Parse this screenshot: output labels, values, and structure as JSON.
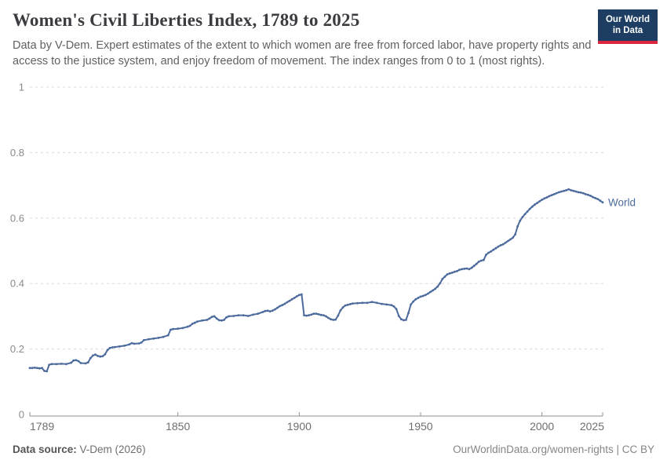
{
  "header": {
    "title": "Women's Civil Liberties Index, 1789 to 2025",
    "subtitle": "Data by V-Dem. Expert estimates of the extent to which women are free from forced labor, have property rights and access to the justice system, and enjoy freedom of movement. The index ranges from 0 to 1 (most rights).",
    "logo": {
      "line1": "Our World",
      "line2": "in Data",
      "bg_color": "#1d3d63",
      "stripe_color": "#dc2640"
    }
  },
  "chart_data": {
    "type": "line",
    "title": "Women's Civil Liberties Index, 1789 to 2025",
    "xlabel": "",
    "ylabel": "",
    "xlim": [
      1789,
      2025
    ],
    "ylim": [
      0,
      1
    ],
    "x_ticks": [
      1789,
      1850,
      1900,
      1950,
      2000,
      2025
    ],
    "y_ticks": [
      0,
      0.2,
      0.4,
      0.6,
      0.8,
      1
    ],
    "grid": "horizontal-dashed",
    "legend_position": "end-of-line-label",
    "axis_color": "#8f8f8f",
    "grid_color": "#d9d9d9",
    "tick_label_color": "#8a8a8a",
    "x_label_color": "#6e6e6e",
    "series": [
      {
        "name": "World",
        "color": "#4c6a9c",
        "points": [
          [
            1789,
            0.142
          ],
          [
            1790,
            0.142
          ],
          [
            1791,
            0.143
          ],
          [
            1792,
            0.142
          ],
          [
            1793,
            0.141
          ],
          [
            1794,
            0.142
          ],
          [
            1795,
            0.133
          ],
          [
            1796,
            0.132
          ],
          [
            1797,
            0.152
          ],
          [
            1798,
            0.154
          ],
          [
            1800,
            0.154
          ],
          [
            1802,
            0.155
          ],
          [
            1804,
            0.154
          ],
          [
            1806,
            0.158
          ],
          [
            1807,
            0.165
          ],
          [
            1808,
            0.166
          ],
          [
            1809,
            0.163
          ],
          [
            1810,
            0.157
          ],
          [
            1812,
            0.156
          ],
          [
            1813,
            0.159
          ],
          [
            1814,
            0.172
          ],
          [
            1815,
            0.18
          ],
          [
            1816,
            0.183
          ],
          [
            1817,
            0.179
          ],
          [
            1818,
            0.177
          ],
          [
            1819,
            0.178
          ],
          [
            1820,
            0.184
          ],
          [
            1821,
            0.197
          ],
          [
            1822,
            0.203
          ],
          [
            1823,
            0.205
          ],
          [
            1824,
            0.206
          ],
          [
            1826,
            0.208
          ],
          [
            1828,
            0.21
          ],
          [
            1830,
            0.214
          ],
          [
            1831,
            0.218
          ],
          [
            1832,
            0.216
          ],
          [
            1834,
            0.217
          ],
          [
            1835,
            0.22
          ],
          [
            1836,
            0.227
          ],
          [
            1838,
            0.23
          ],
          [
            1840,
            0.232
          ],
          [
            1842,
            0.234
          ],
          [
            1844,
            0.237
          ],
          [
            1846,
            0.242
          ],
          [
            1847,
            0.259
          ],
          [
            1848,
            0.261
          ],
          [
            1850,
            0.262
          ],
          [
            1852,
            0.264
          ],
          [
            1854,
            0.268
          ],
          [
            1855,
            0.271
          ],
          [
            1856,
            0.277
          ],
          [
            1857,
            0.28
          ],
          [
            1858,
            0.284
          ],
          [
            1860,
            0.287
          ],
          [
            1862,
            0.289
          ],
          [
            1863,
            0.293
          ],
          [
            1864,
            0.298
          ],
          [
            1865,
            0.3
          ],
          [
            1866,
            0.293
          ],
          [
            1867,
            0.288
          ],
          [
            1868,
            0.287
          ],
          [
            1869,
            0.289
          ],
          [
            1870,
            0.297
          ],
          [
            1871,
            0.3
          ],
          [
            1873,
            0.301
          ],
          [
            1875,
            0.303
          ],
          [
            1877,
            0.303
          ],
          [
            1879,
            0.301
          ],
          [
            1881,
            0.305
          ],
          [
            1883,
            0.308
          ],
          [
            1885,
            0.313
          ],
          [
            1886,
            0.316
          ],
          [
            1887,
            0.317
          ],
          [
            1888,
            0.315
          ],
          [
            1889,
            0.317
          ],
          [
            1890,
            0.321
          ],
          [
            1891,
            0.326
          ],
          [
            1892,
            0.331
          ],
          [
            1893,
            0.334
          ],
          [
            1894,
            0.338
          ],
          [
            1895,
            0.343
          ],
          [
            1896,
            0.347
          ],
          [
            1897,
            0.352
          ],
          [
            1898,
            0.356
          ],
          [
            1899,
            0.361
          ],
          [
            1900,
            0.365
          ],
          [
            1901,
            0.367
          ],
          [
            1902,
            0.303
          ],
          [
            1903,
            0.302
          ],
          [
            1904,
            0.303
          ],
          [
            1905,
            0.305
          ],
          [
            1906,
            0.308
          ],
          [
            1907,
            0.308
          ],
          [
            1908,
            0.306
          ],
          [
            1909,
            0.304
          ],
          [
            1910,
            0.303
          ],
          [
            1911,
            0.3
          ],
          [
            1912,
            0.295
          ],
          [
            1913,
            0.291
          ],
          [
            1914,
            0.289
          ],
          [
            1915,
            0.29
          ],
          [
            1916,
            0.302
          ],
          [
            1917,
            0.318
          ],
          [
            1918,
            0.327
          ],
          [
            1919,
            0.333
          ],
          [
            1920,
            0.335
          ],
          [
            1921,
            0.337
          ],
          [
            1922,
            0.339
          ],
          [
            1924,
            0.34
          ],
          [
            1926,
            0.341
          ],
          [
            1928,
            0.341
          ],
          [
            1930,
            0.344
          ],
          [
            1932,
            0.341
          ],
          [
            1934,
            0.338
          ],
          [
            1936,
            0.336
          ],
          [
            1938,
            0.334
          ],
          [
            1939,
            0.33
          ],
          [
            1940,
            0.322
          ],
          [
            1941,
            0.301
          ],
          [
            1942,
            0.291
          ],
          [
            1943,
            0.288
          ],
          [
            1944,
            0.289
          ],
          [
            1945,
            0.31
          ],
          [
            1946,
            0.336
          ],
          [
            1947,
            0.345
          ],
          [
            1948,
            0.352
          ],
          [
            1949,
            0.356
          ],
          [
            1950,
            0.36
          ],
          [
            1951,
            0.362
          ],
          [
            1952,
            0.365
          ],
          [
            1953,
            0.369
          ],
          [
            1954,
            0.374
          ],
          [
            1955,
            0.379
          ],
          [
            1956,
            0.384
          ],
          [
            1957,
            0.391
          ],
          [
            1958,
            0.401
          ],
          [
            1959,
            0.414
          ],
          [
            1960,
            0.421
          ],
          [
            1961,
            0.428
          ],
          [
            1962,
            0.431
          ],
          [
            1963,
            0.433
          ],
          [
            1964,
            0.436
          ],
          [
            1965,
            0.438
          ],
          [
            1966,
            0.442
          ],
          [
            1967,
            0.444
          ],
          [
            1968,
            0.445
          ],
          [
            1969,
            0.446
          ],
          [
            1970,
            0.444
          ],
          [
            1971,
            0.448
          ],
          [
            1972,
            0.454
          ],
          [
            1973,
            0.46
          ],
          [
            1974,
            0.467
          ],
          [
            1975,
            0.47
          ],
          [
            1976,
            0.472
          ],
          [
            1977,
            0.488
          ],
          [
            1978,
            0.494
          ],
          [
            1979,
            0.498
          ],
          [
            1980,
            0.503
          ],
          [
            1981,
            0.508
          ],
          [
            1982,
            0.513
          ],
          [
            1983,
            0.517
          ],
          [
            1984,
            0.52
          ],
          [
            1985,
            0.525
          ],
          [
            1986,
            0.53
          ],
          [
            1987,
            0.535
          ],
          [
            1988,
            0.54
          ],
          [
            1989,
            0.55
          ],
          [
            1990,
            0.575
          ],
          [
            1991,
            0.592
          ],
          [
            1992,
            0.603
          ],
          [
            1993,
            0.612
          ],
          [
            1994,
            0.62
          ],
          [
            1995,
            0.628
          ],
          [
            1996,
            0.635
          ],
          [
            1997,
            0.641
          ],
          [
            1998,
            0.646
          ],
          [
            1999,
            0.651
          ],
          [
            2000,
            0.656
          ],
          [
            2001,
            0.66
          ],
          [
            2002,
            0.663
          ],
          [
            2003,
            0.667
          ],
          [
            2004,
            0.67
          ],
          [
            2005,
            0.673
          ],
          [
            2006,
            0.676
          ],
          [
            2007,
            0.679
          ],
          [
            2008,
            0.681
          ],
          [
            2009,
            0.683
          ],
          [
            2010,
            0.685
          ],
          [
            2011,
            0.688
          ],
          [
            2012,
            0.685
          ],
          [
            2013,
            0.683
          ],
          [
            2014,
            0.681
          ],
          [
            2015,
            0.679
          ],
          [
            2016,
            0.678
          ],
          [
            2017,
            0.676
          ],
          [
            2018,
            0.673
          ],
          [
            2019,
            0.671
          ],
          [
            2020,
            0.668
          ],
          [
            2021,
            0.664
          ],
          [
            2022,
            0.661
          ],
          [
            2023,
            0.658
          ],
          [
            2024,
            0.653
          ],
          [
            2025,
            0.648
          ]
        ]
      }
    ]
  },
  "footer": {
    "source_label": "Data source:",
    "source_value": " V-Dem (2026)",
    "attribution": "OurWorldinData.org/women-rights | CC BY"
  }
}
